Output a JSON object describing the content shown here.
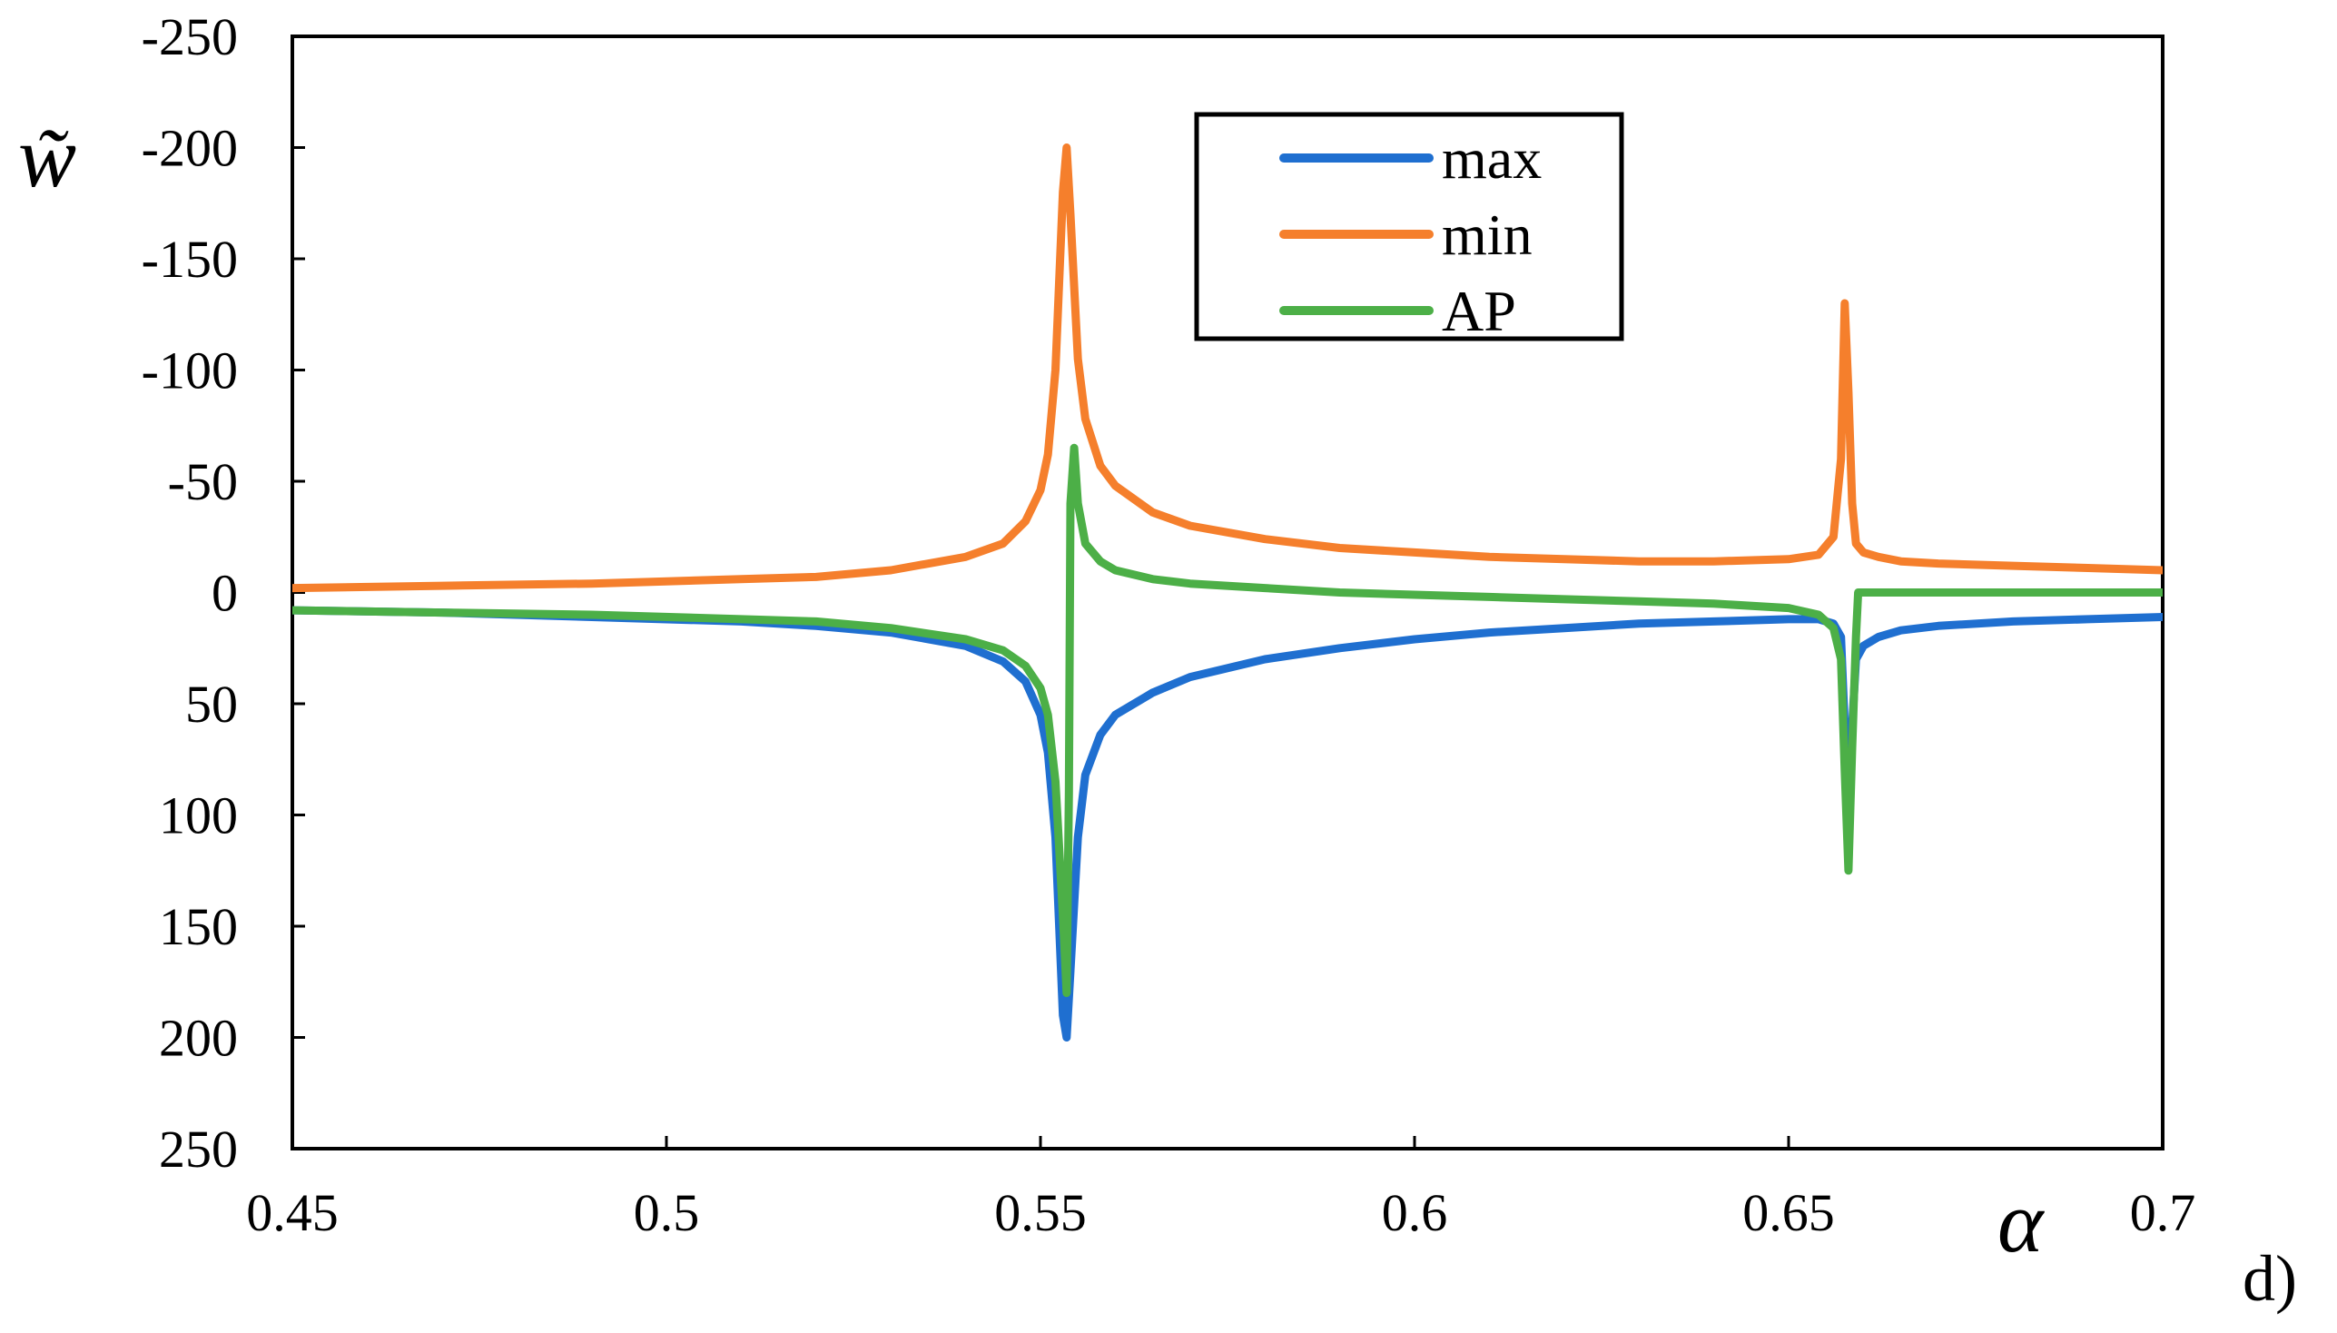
{
  "chart_data": {
    "type": "line",
    "title": "",
    "xlabel": "α",
    "ylabel": "w̃",
    "panel_label": "d)",
    "x_range": [
      0.45,
      0.7
    ],
    "x_ticks": [
      {
        "value": 0.45,
        "label": "0.45"
      },
      {
        "value": 0.5,
        "label": "0.5"
      },
      {
        "value": 0.55,
        "label": "0.55"
      },
      {
        "value": 0.6,
        "label": "0.6"
      },
      {
        "value": 0.65,
        "label": "0.65"
      },
      {
        "value": 0.7,
        "label": "0.7"
      }
    ],
    "y_axis_inverted": true,
    "y_range": [
      -250,
      250
    ],
    "y_ticks": [
      {
        "value": -250,
        "label": "-250"
      },
      {
        "value": -200,
        "label": "-200"
      },
      {
        "value": -150,
        "label": "-150"
      },
      {
        "value": -100,
        "label": "-100"
      },
      {
        "value": -50,
        "label": "-50"
      },
      {
        "value": 0,
        "label": "0"
      },
      {
        "value": 50,
        "label": "50"
      },
      {
        "value": 100,
        "label": "100"
      },
      {
        "value": 150,
        "label": "150"
      },
      {
        "value": 200,
        "label": "200"
      },
      {
        "value": 250,
        "label": "250"
      }
    ],
    "grid": false,
    "legend_position": "top-center",
    "series": [
      {
        "name": "max",
        "color": "#1f6fd0",
        "x": [
          0.45,
          0.47,
          0.49,
          0.51,
          0.52,
          0.53,
          0.54,
          0.545,
          0.548,
          0.55,
          0.551,
          0.552,
          0.553,
          0.5535,
          0.554,
          0.555,
          0.556,
          0.558,
          0.56,
          0.565,
          0.57,
          0.58,
          0.59,
          0.6,
          0.61,
          0.62,
          0.63,
          0.64,
          0.65,
          0.654,
          0.656,
          0.657,
          0.6575,
          0.658,
          0.6585,
          0.659,
          0.66,
          0.662,
          0.665,
          0.67,
          0.68,
          0.69,
          0.7
        ],
        "y": [
          8,
          9,
          11,
          13,
          15,
          18,
          24,
          31,
          40,
          55,
          72,
          110,
          190,
          200,
          170,
          110,
          82,
          64,
          55,
          45,
          38,
          30,
          25,
          21,
          18,
          16,
          14,
          13,
          12,
          12,
          14,
          20,
          60,
          120,
          60,
          30,
          24,
          20,
          17,
          15,
          13,
          12,
          11
        ]
      },
      {
        "name": "min",
        "color": "#f57f2c",
        "x": [
          0.45,
          0.47,
          0.49,
          0.51,
          0.52,
          0.53,
          0.54,
          0.545,
          0.548,
          0.55,
          0.551,
          0.552,
          0.553,
          0.5535,
          0.554,
          0.555,
          0.556,
          0.558,
          0.56,
          0.565,
          0.57,
          0.58,
          0.59,
          0.6,
          0.61,
          0.62,
          0.63,
          0.64,
          0.65,
          0.654,
          0.656,
          0.657,
          0.6575,
          0.658,
          0.6585,
          0.659,
          0.66,
          0.662,
          0.665,
          0.67,
          0.68,
          0.69,
          0.7
        ],
        "y": [
          -2,
          -3,
          -4,
          -6,
          -7,
          -10,
          -16,
          -22,
          -32,
          -46,
          -62,
          -100,
          -180,
          -200,
          -170,
          -105,
          -78,
          -57,
          -48,
          -36,
          -30,
          -24,
          -20,
          -18,
          -16,
          -15,
          -14,
          -14,
          -15,
          -17,
          -25,
          -60,
          -130,
          -90,
          -40,
          -22,
          -18,
          -16,
          -14,
          -13,
          -12,
          -11,
          -10
        ]
      },
      {
        "name": "AP",
        "color": "#4caf47",
        "x": [
          0.45,
          0.47,
          0.49,
          0.51,
          0.52,
          0.53,
          0.54,
          0.545,
          0.548,
          0.55,
          0.551,
          0.552,
          0.553,
          0.5535,
          0.5538,
          0.554,
          0.5545,
          0.555,
          0.556,
          0.558,
          0.56,
          0.565,
          0.57,
          0.58,
          0.59,
          0.6,
          0.61,
          0.62,
          0.63,
          0.64,
          0.65,
          0.654,
          0.656,
          0.657,
          0.6575,
          0.658,
          0.6585,
          0.659,
          0.6593,
          0.66,
          0.67,
          0.68,
          0.69,
          0.7
        ],
        "y": [
          8,
          9,
          10,
          12,
          13,
          16,
          21,
          26,
          33,
          43,
          55,
          85,
          145,
          180,
          90,
          -40,
          -65,
          -40,
          -22,
          -14,
          -10,
          -6,
          -4,
          -2,
          0,
          1,
          2,
          3,
          4,
          5,
          7,
          10,
          16,
          30,
          80,
          125,
          70,
          20,
          0,
          0,
          0,
          0,
          0,
          0
        ]
      }
    ]
  }
}
